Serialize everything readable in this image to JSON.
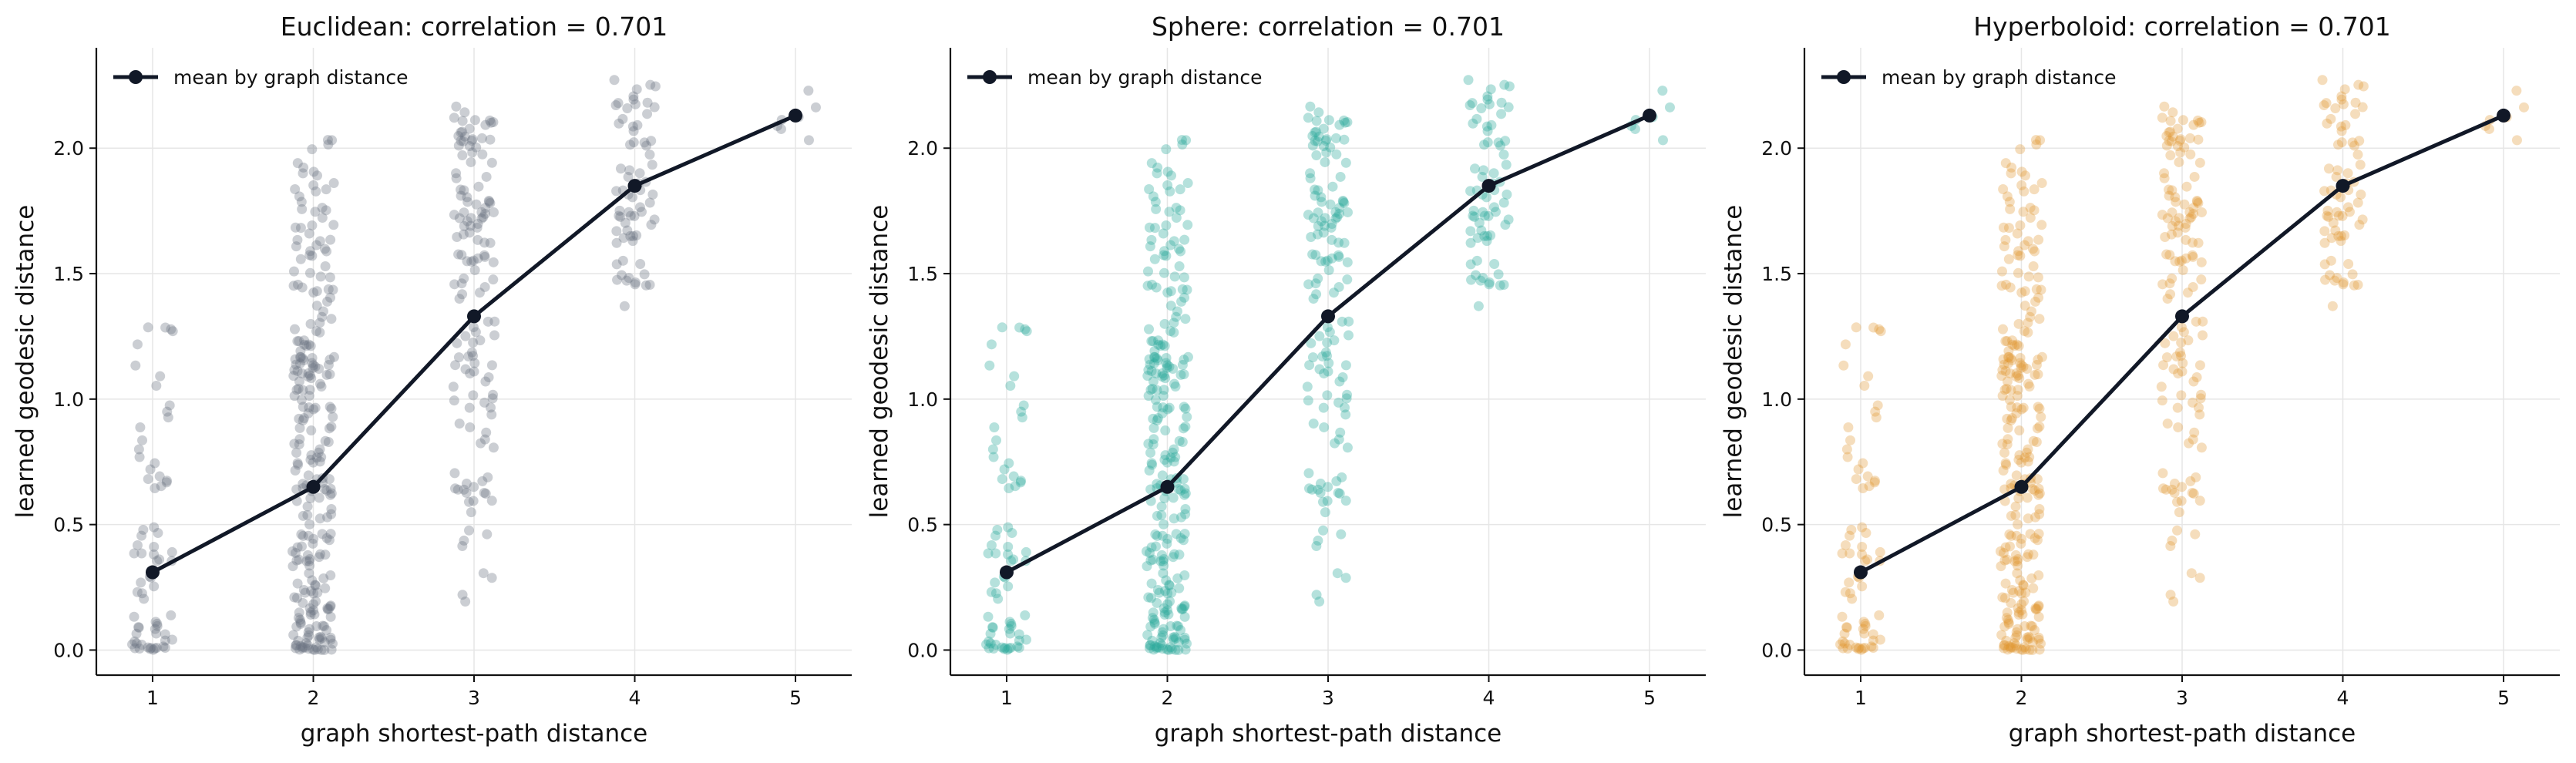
{
  "figure": {
    "panels": [
      {
        "title": "Euclidean: correlation = 0.701",
        "point_color": "#6b7280",
        "point_opacity": 0.35
      },
      {
        "title": "Sphere: correlation = 0.701",
        "point_color": "#2aa89a",
        "point_opacity": 0.35
      },
      {
        "title": "Hyperboloid: correlation = 0.701",
        "point_color": "#e0962e",
        "point_opacity": 0.32
      }
    ],
    "xlabel": "graph shortest-path distance",
    "ylabel": "learned geodesic distance",
    "legend_label": "mean by graph distance",
    "line_color": "#111827"
  },
  "chart_data": [
    {
      "type": "scatter",
      "title": "Euclidean: correlation = 0.701",
      "xlabel": "graph shortest-path distance",
      "ylabel": "learned geodesic distance",
      "x_ticks": [
        1,
        2,
        3,
        4,
        5
      ],
      "y_ticks": [
        0.0,
        0.5,
        1.0,
        1.5,
        2.0
      ],
      "xlim": [
        0.65,
        5.35
      ],
      "ylim": [
        -0.1,
        2.4
      ],
      "grid": true,
      "legend": "top-left",
      "series": [
        {
          "name": "mean by graph distance",
          "type": "line",
          "x": [
            1,
            2,
            3,
            4,
            5
          ],
          "y": [
            0.31,
            0.65,
            1.33,
            1.85,
            2.13
          ]
        }
      ],
      "point_groups": [
        {
          "x": 1,
          "count": 70,
          "range": [
            0.0,
            1.45
          ],
          "mean": 0.31
        },
        {
          "x": 2,
          "count": 260,
          "range": [
            0.0,
            2.05
          ],
          "mean": 0.65
        },
        {
          "x": 3,
          "count": 140,
          "range": [
            0.02,
            2.18
          ],
          "mean": 1.33
        },
        {
          "x": 4,
          "count": 70,
          "range": [
            1.35,
            2.28
          ],
          "mean": 1.85
        },
        {
          "x": 5,
          "count": 8,
          "range": [
            2.0,
            2.24
          ],
          "mean": 2.13
        }
      ]
    },
    {
      "type": "scatter",
      "title": "Sphere: correlation = 0.701",
      "xlabel": "graph shortest-path distance",
      "ylabel": "learned geodesic distance",
      "x_ticks": [
        1,
        2,
        3,
        4,
        5
      ],
      "y_ticks": [
        0.0,
        0.5,
        1.0,
        1.5,
        2.0
      ],
      "xlim": [
        0.65,
        5.35
      ],
      "ylim": [
        -0.1,
        2.4
      ],
      "grid": true,
      "legend": "top-left",
      "series": [
        {
          "name": "mean by graph distance",
          "type": "line",
          "x": [
            1,
            2,
            3,
            4,
            5
          ],
          "y": [
            0.31,
            0.65,
            1.33,
            1.85,
            2.13
          ]
        }
      ],
      "point_groups": [
        {
          "x": 1,
          "count": 70,
          "range": [
            0.0,
            1.45
          ],
          "mean": 0.31
        },
        {
          "x": 2,
          "count": 260,
          "range": [
            0.0,
            2.05
          ],
          "mean": 0.65
        },
        {
          "x": 3,
          "count": 140,
          "range": [
            0.02,
            2.18
          ],
          "mean": 1.33
        },
        {
          "x": 4,
          "count": 70,
          "range": [
            1.35,
            2.28
          ],
          "mean": 1.85
        },
        {
          "x": 5,
          "count": 8,
          "range": [
            2.0,
            2.24
          ],
          "mean": 2.13
        }
      ]
    },
    {
      "type": "scatter",
      "title": "Hyperboloid: correlation = 0.701",
      "xlabel": "graph shortest-path distance",
      "ylabel": "learned geodesic distance",
      "x_ticks": [
        1,
        2,
        3,
        4,
        5
      ],
      "y_ticks": [
        0.0,
        0.5,
        1.0,
        1.5,
        2.0
      ],
      "xlim": [
        0.65,
        5.35
      ],
      "ylim": [
        -0.1,
        2.4
      ],
      "grid": true,
      "legend": "top-left",
      "series": [
        {
          "name": "mean by graph distance",
          "type": "line",
          "x": [
            1,
            2,
            3,
            4,
            5
          ],
          "y": [
            0.31,
            0.65,
            1.33,
            1.85,
            2.13
          ]
        }
      ],
      "point_groups": [
        {
          "x": 1,
          "count": 70,
          "range": [
            0.0,
            1.45
          ],
          "mean": 0.31
        },
        {
          "x": 2,
          "count": 260,
          "range": [
            0.0,
            2.05
          ],
          "mean": 0.65
        },
        {
          "x": 3,
          "count": 140,
          "range": [
            0.02,
            2.18
          ],
          "mean": 1.33
        },
        {
          "x": 4,
          "count": 70,
          "range": [
            1.35,
            2.28
          ],
          "mean": 1.85
        },
        {
          "x": 5,
          "count": 8,
          "range": [
            2.0,
            2.24
          ],
          "mean": 2.13
        }
      ]
    }
  ]
}
